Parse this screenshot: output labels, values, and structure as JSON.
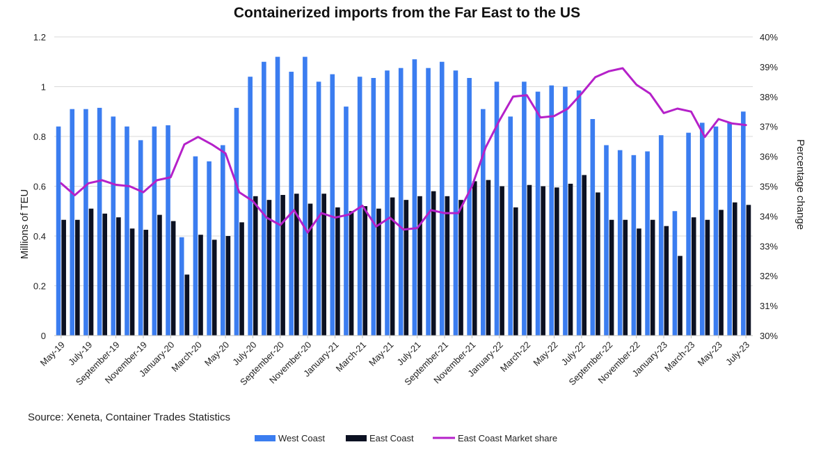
{
  "chart_data": {
    "type": "bar",
    "title": "Containerized imports from the Far East to the US",
    "ylabel": "Millions of TEU",
    "y2label": "Percentage change",
    "ylim": [
      0,
      1.2
    ],
    "y2lim": [
      30,
      40
    ],
    "y_ticks": [
      "0",
      "0.2",
      "0.4",
      "0.6",
      "0.8",
      "1",
      "1.2"
    ],
    "y2_ticks": [
      "30%",
      "31%",
      "32%",
      "33%",
      "34%",
      "35%",
      "36%",
      "37%",
      "38%",
      "39%",
      "40%"
    ],
    "source": "Source: Xeneta, Container Trades Statistics",
    "categories": [
      "May-19",
      "Jun-19",
      "Jul-19",
      "Aug-19",
      "Sep-19",
      "Oct-19",
      "Nov-19",
      "Dec-19",
      "Jan-20",
      "Feb-20",
      "Mar-20",
      "Apr-20",
      "May-20",
      "Jun-20",
      "Jul-20",
      "Aug-20",
      "Sep-20",
      "Oct-20",
      "Nov-20",
      "Dec-20",
      "Jan-21",
      "Feb-21",
      "Mar-21",
      "Apr-21",
      "May-21",
      "Jun-21",
      "Jul-21",
      "Aug-21",
      "Sep-21",
      "Oct-21",
      "Nov-21",
      "Dec-21",
      "Jan-22",
      "Feb-22",
      "Mar-22",
      "Apr-22",
      "May-22",
      "Jun-22",
      "Jul-22",
      "Aug-22",
      "Sep-22",
      "Oct-22",
      "Nov-22",
      "Dec-22",
      "Jan-23",
      "Feb-23",
      "Mar-23",
      "Apr-23",
      "May-23",
      "Jun-23",
      "Jul-23"
    ],
    "x_tick_labels": [
      "May-19",
      "July-19",
      "September-19",
      "November-19",
      "January-20",
      "March-20",
      "May-20",
      "July-20",
      "September-20",
      "November-20",
      "January-21",
      "March-21",
      "May-21",
      "July-21",
      "September-21",
      "November-21",
      "January-22",
      "March-22",
      "May-22",
      "July-22",
      "September-22",
      "November-22",
      "January-23",
      "March-23",
      "May-23",
      "July-23"
    ],
    "series": [
      {
        "name": "West Coast",
        "kind": "bar",
        "color": "#3b7df0",
        "values": [
          0.84,
          0.91,
          0.91,
          0.915,
          0.88,
          0.84,
          0.785,
          0.84,
          0.845,
          0.395,
          0.72,
          0.7,
          0.765,
          0.915,
          1.04,
          1.1,
          1.12,
          1.06,
          1.12,
          1.02,
          1.05,
          0.92,
          1.04,
          1.035,
          1.065,
          1.075,
          1.11,
          1.075,
          1.1,
          1.065,
          1.035,
          0.91,
          1.02,
          0.88,
          1.02,
          0.98,
          1.005,
          1.0,
          0.985,
          0.87,
          0.765,
          0.745,
          0.725,
          0.74,
          0.805,
          0.5,
          0.815,
          0.855,
          0.84,
          0.855,
          0.9
        ]
      },
      {
        "name": "East Coast",
        "kind": "bar",
        "color": "#0c1122",
        "values": [
          0.465,
          0.465,
          0.51,
          0.49,
          0.475,
          0.43,
          0.425,
          0.485,
          0.46,
          0.245,
          0.405,
          0.385,
          0.4,
          0.455,
          0.56,
          0.545,
          0.565,
          0.57,
          0.53,
          0.57,
          0.515,
          0.5,
          0.52,
          0.51,
          0.555,
          0.545,
          0.56,
          0.58,
          0.56,
          0.545,
          0.62,
          0.625,
          0.6,
          0.515,
          0.605,
          0.6,
          0.595,
          0.61,
          0.645,
          0.575,
          0.465,
          0.465,
          0.43,
          0.465,
          0.44,
          0.32,
          0.475,
          0.465,
          0.505,
          0.535,
          0.525
        ]
      },
      {
        "name": "East Coast Market share",
        "kind": "line",
        "axis": "right",
        "color": "#b521c9",
        "values": [
          35.1,
          34.7,
          35.1,
          35.2,
          35.05,
          35.0,
          34.8,
          35.2,
          35.3,
          36.4,
          36.65,
          36.4,
          36.1,
          34.8,
          34.5,
          33.95,
          33.7,
          34.2,
          33.45,
          34.1,
          33.95,
          34.05,
          34.35,
          33.65,
          33.95,
          33.55,
          33.6,
          34.2,
          34.1,
          34.1,
          35.0,
          36.3,
          37.2,
          38.0,
          38.05,
          37.3,
          37.35,
          37.6,
          38.1,
          38.65,
          38.85,
          38.95,
          38.4,
          38.1,
          37.45,
          37.6,
          37.5,
          36.65,
          37.25,
          37.1,
          37.05
        ]
      }
    ],
    "grid": "horizontal",
    "legend_placement": "bottom-center"
  }
}
